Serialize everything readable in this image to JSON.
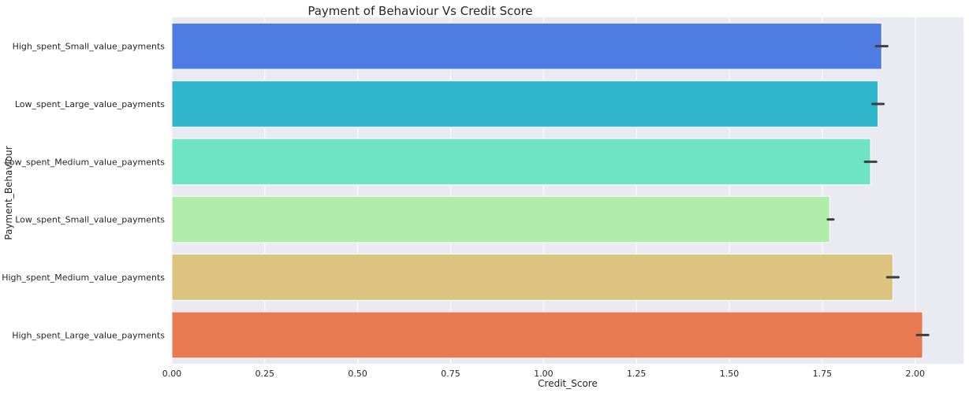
{
  "chart_data": {
    "type": "bar",
    "orientation": "horizontal",
    "title": "Payment of Behaviour Vs Credit Score",
    "xlabel": "Credit_Score",
    "ylabel": "Payment_Behaviour",
    "xlim": [
      0,
      2.13
    ],
    "x_ticks": [
      "0.00",
      "0.25",
      "0.50",
      "0.75",
      "1.00",
      "1.25",
      "1.50",
      "1.75",
      "2.00"
    ],
    "x_tick_values": [
      0,
      0.25,
      0.5,
      0.75,
      1.0,
      1.25,
      1.5,
      1.75,
      2.0
    ],
    "grid": true,
    "categories": [
      "High_spent_Small_value_payments",
      "Low_spent_Large_value_payments",
      "Low_spent_Medium_value_payments",
      "Low_spent_Small_value_payments",
      "High_spent_Medium_value_payments",
      "High_spent_Large_value_payments"
    ],
    "values": [
      1.91,
      1.9,
      1.88,
      1.77,
      1.94,
      2.02
    ],
    "error_low": [
      1.895,
      1.885,
      1.865,
      1.765,
      1.925,
      2.005
    ],
    "error_high": [
      1.925,
      1.915,
      1.895,
      1.78,
      1.955,
      2.035
    ],
    "colors": [
      "#4f7ce3",
      "#2fb6cc",
      "#6ee4c3",
      "#b0ecaa",
      "#dcc37f",
      "#e87a52"
    ],
    "background_color": "#eaeaf2"
  }
}
